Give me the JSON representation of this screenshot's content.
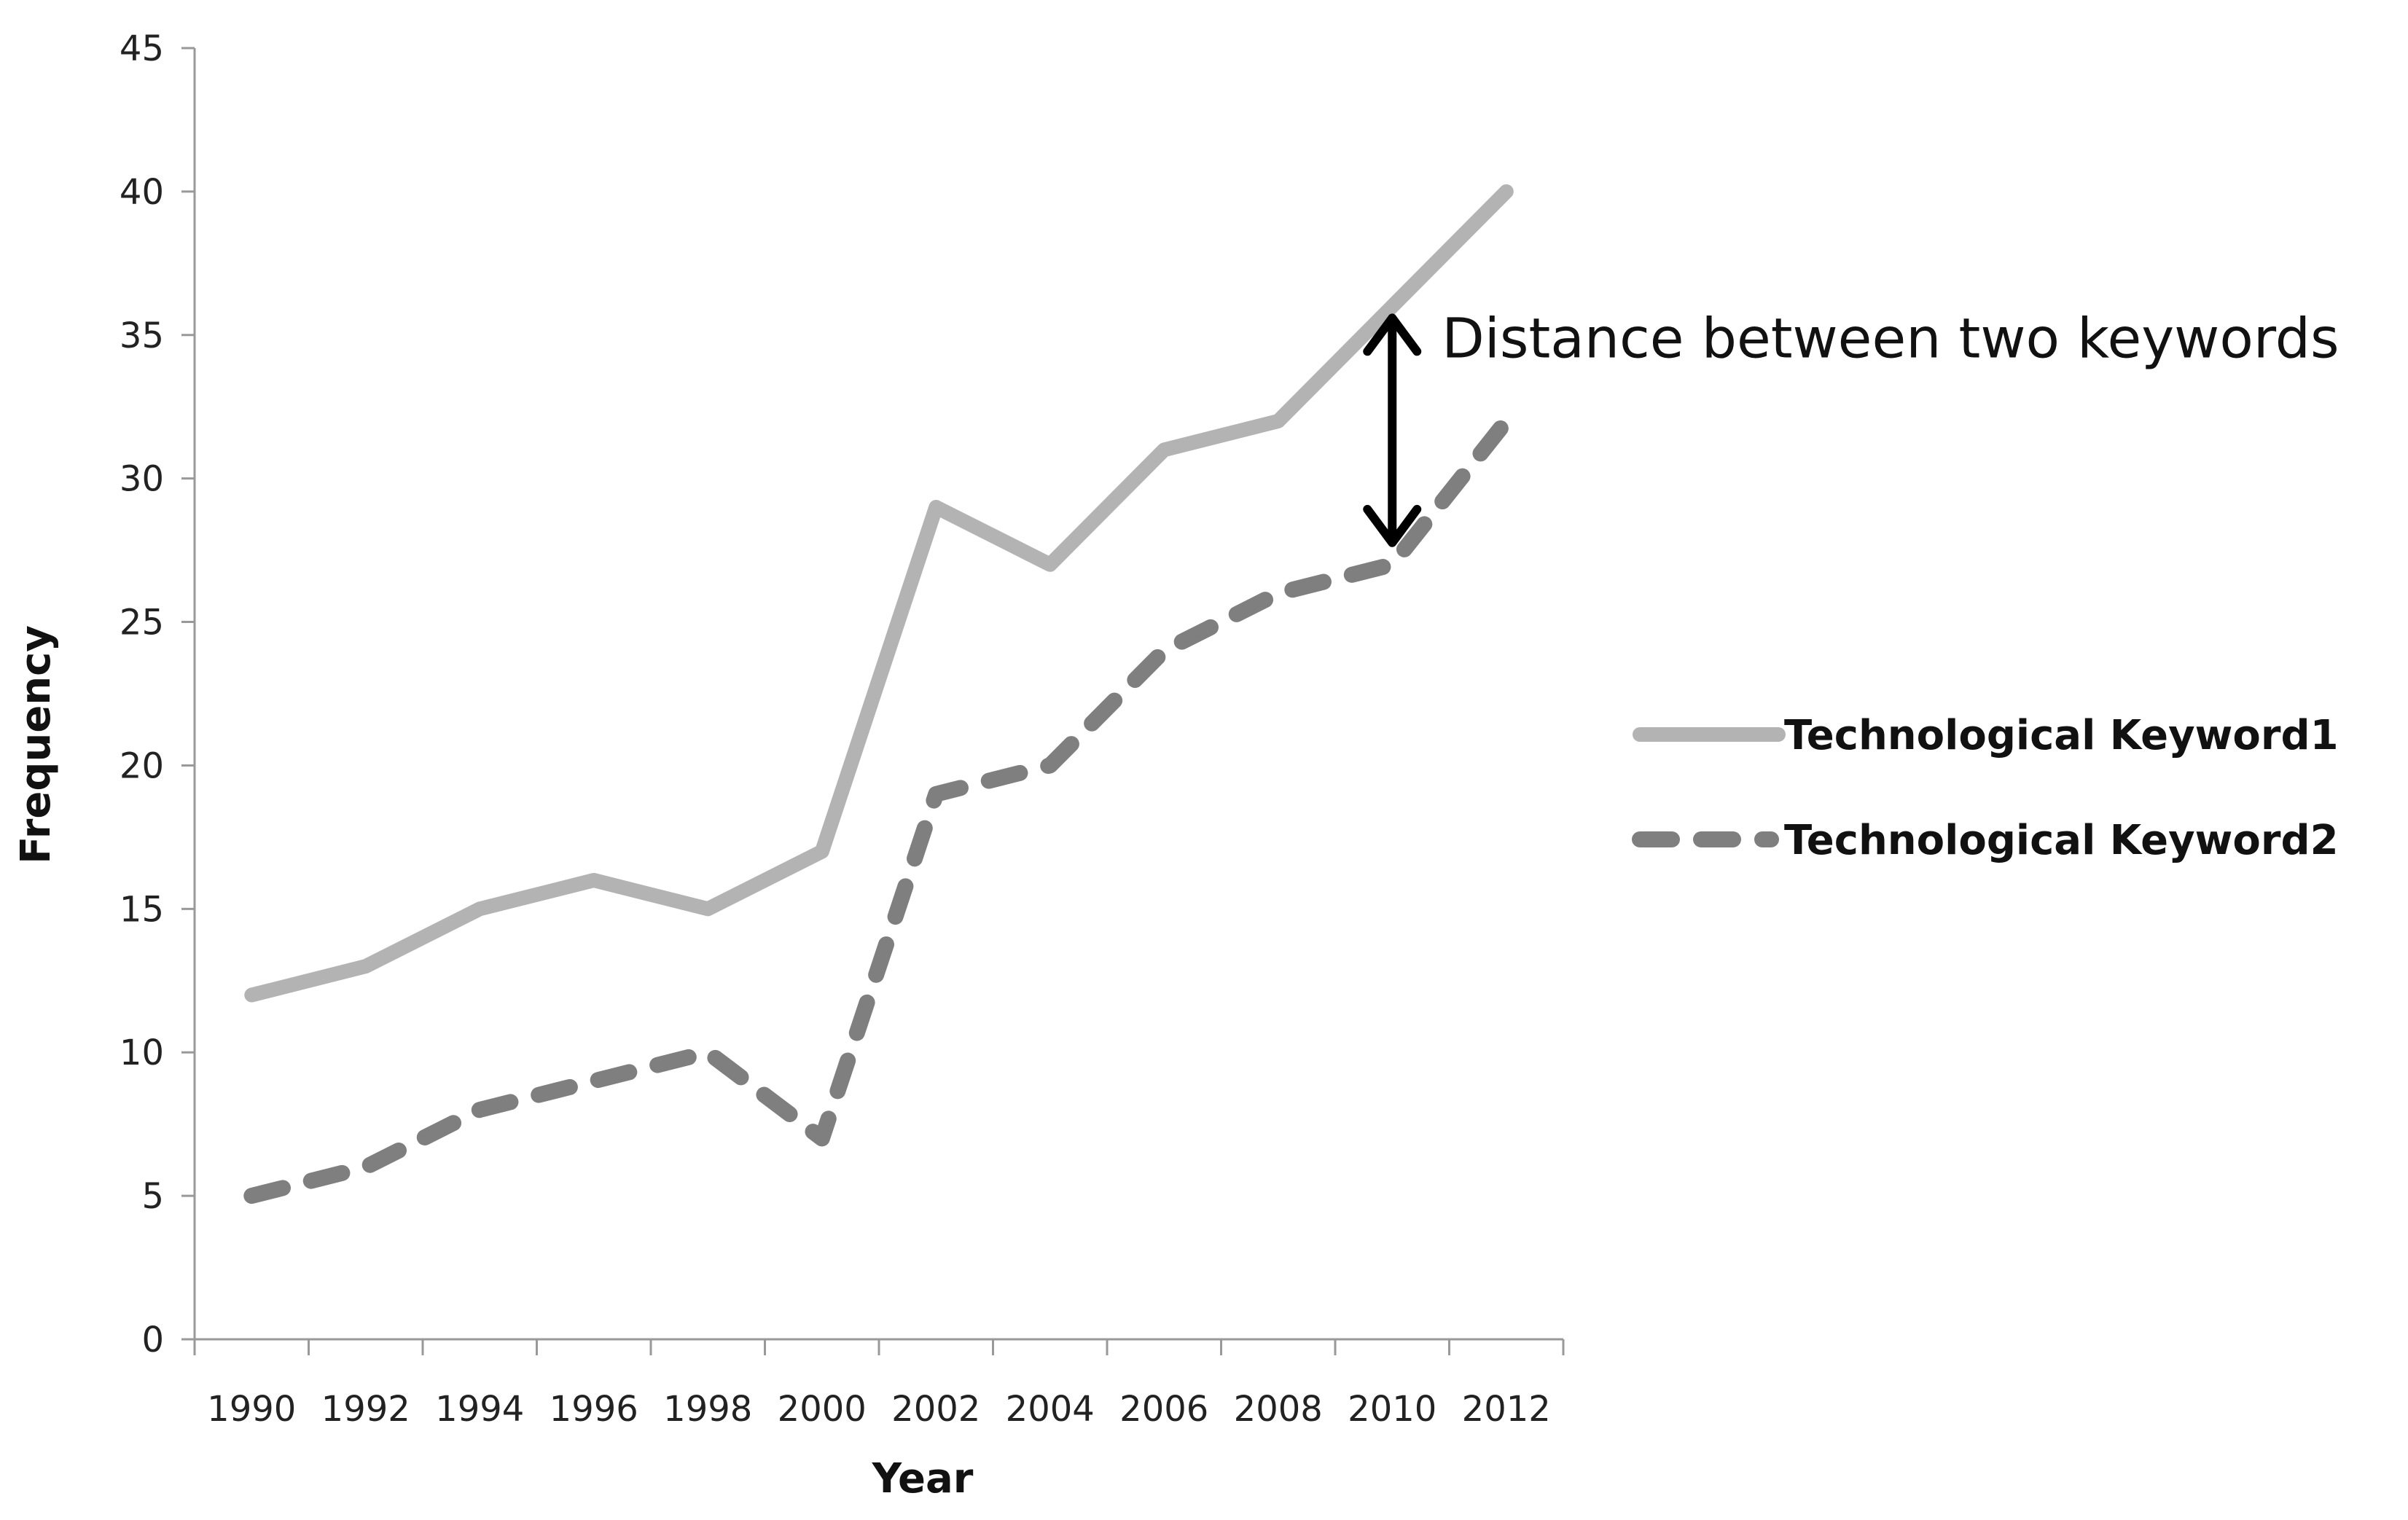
{
  "chart_data": {
    "type": "line",
    "x": [
      1990,
      1992,
      1994,
      1996,
      1998,
      2000,
      2002,
      2004,
      2006,
      2008,
      2010,
      2012
    ],
    "x_tick_labels": [
      "1990",
      "1992",
      "1994",
      "1996",
      "1998",
      "2000",
      "2002",
      "2004",
      "2006",
      "2008",
      "2010",
      "2012"
    ],
    "y_tick_labels": [
      "0",
      "5",
      "10",
      "15",
      "20",
      "25",
      "30",
      "35",
      "40",
      "45"
    ],
    "y_ticks": [
      0,
      5,
      10,
      15,
      20,
      25,
      30,
      35,
      40,
      45
    ],
    "ylim": [
      0,
      45
    ],
    "xlabel": "Year",
    "ylabel": "Frequency",
    "grid": false,
    "legend_position": "right",
    "series": [
      {
        "name": "Technological Keyword1",
        "style": "solid",
        "color": "#b3b3b3",
        "values": [
          12,
          13,
          15,
          16,
          15,
          17,
          29,
          27,
          31,
          32,
          36,
          40
        ]
      },
      {
        "name": "Technological Keyword2",
        "style": "dashed",
        "color": "#7f7f7f",
        "values": [
          5,
          6,
          8,
          9,
          10,
          7,
          19,
          20,
          24,
          26,
          27,
          32
        ]
      }
    ],
    "annotation": {
      "text": "Distance between two keywords",
      "x": 2010,
      "from": 27,
      "to": 36
    }
  }
}
